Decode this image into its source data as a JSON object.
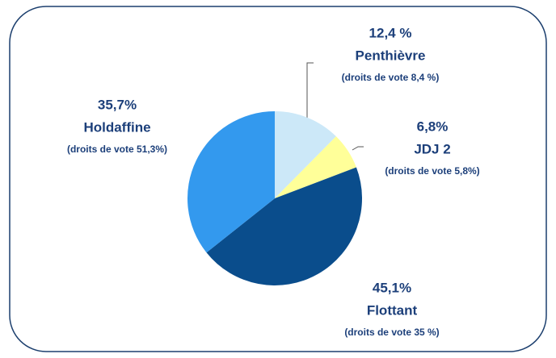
{
  "chart_data": {
    "type": "pie",
    "categories": [
      "Penthièvre",
      "JDJ 2",
      "Flottant",
      "Holdaffine"
    ],
    "values": [
      12.4,
      6.8,
      45.1,
      35.7
    ],
    "value_labels": [
      "12,4 %",
      "6,8%",
      "45,1%",
      "35,7%"
    ],
    "sublabels": [
      "(droits de vote 8,4 %)",
      "(droits de vote 5,8%)",
      "(droits de vote 35 %)",
      "(droits de vote 51,3%)"
    ],
    "colors": [
      "#cce8f8",
      "#ffff99",
      "#0a4d8c",
      "#3399ee"
    ]
  }
}
